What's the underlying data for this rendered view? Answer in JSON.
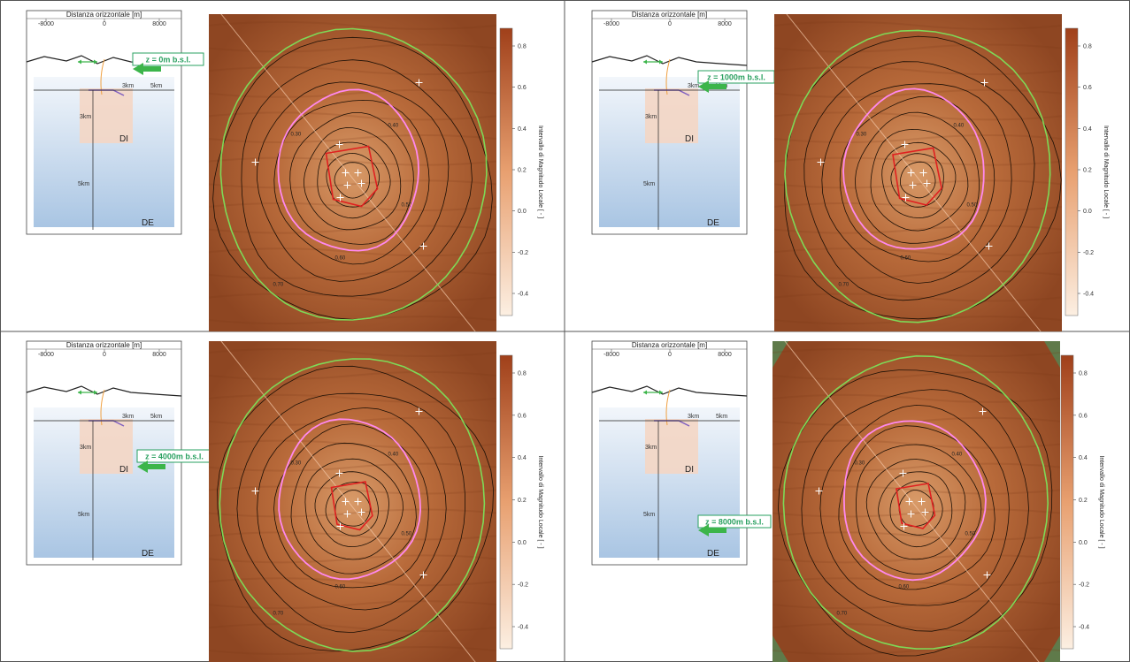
{
  "section_axis": {
    "title": "Distanza orizzontale [m]",
    "ticks": [
      "-8000",
      "0",
      "8000"
    ]
  },
  "zones": {
    "inner": "DI",
    "outer": "DE"
  },
  "scale_labels": {
    "vertical_3km": "3km",
    "vertical_5km": "5km",
    "horizontal_3km": "3km",
    "horizontal_5km": "5km"
  },
  "colorbar": {
    "label": "Intervallo di Magnitudo Locale [ - ]",
    "ticks": [
      "0.8",
      "0.6",
      "0.4",
      "0.2",
      "0.0",
      "-0.2",
      "-0.4"
    ]
  },
  "contour_labels": [
    "0.30",
    "0.40",
    "0.50",
    "0.60",
    "0.70"
  ],
  "colors": {
    "map_base": "#a4582e",
    "outer_boundary": "#7ed957",
    "inner_boundary": "#ff88ee",
    "red_domain": "#e02020",
    "depth_label": "#2aa060",
    "arrow": "#3cb54a"
  },
  "panels": [
    {
      "depth_label": "z = 0m b.s.l."
    },
    {
      "depth_label": "z = 1000m b.s.l."
    },
    {
      "depth_label": "z = 4000m b.s.l."
    },
    {
      "depth_label": "z = 8000m b.s.l."
    }
  ]
}
